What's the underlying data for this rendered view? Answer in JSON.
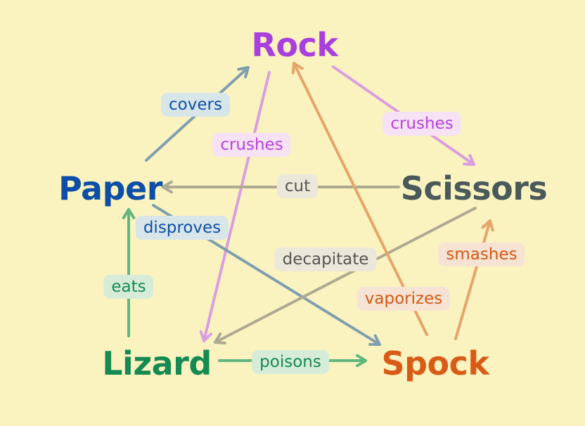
{
  "nodes": {
    "rock": {
      "label": "Rock",
      "color": "#a93fdc"
    },
    "paper": {
      "label": "Paper",
      "color": "#0d4fa6"
    },
    "scissors": {
      "label": "Scissors",
      "color": "#4a5a5a"
    },
    "lizard": {
      "label": "Lizard",
      "color": "#158a52"
    },
    "spock": {
      "label": "Spock",
      "color": "#d85b16"
    }
  },
  "edges": [
    {
      "from": "paper",
      "to": "rock",
      "label": "covers",
      "line": "#7f9fae",
      "bg": "#d8e6ea",
      "text": "#0d4fa6"
    },
    {
      "from": "rock",
      "to": "scissors",
      "label": "crushes",
      "line": "#d99ee0",
      "bg": "#f6e2f4",
      "text": "#b743d6"
    },
    {
      "from": "rock",
      "to": "lizard",
      "label": "crushes",
      "line": "#d99ee0",
      "bg": "#f6e2f4",
      "text": "#b743d6"
    },
    {
      "from": "scissors",
      "to": "paper",
      "label": "cut",
      "line": "#aeaa92",
      "bg": "#ebe8da",
      "text": "#555555"
    },
    {
      "from": "paper",
      "to": "spock",
      "label": "disproves",
      "line": "#7f9fae",
      "bg": "#d8e6ea",
      "text": "#0d4fa6"
    },
    {
      "from": "scissors",
      "to": "lizard",
      "label": "decapitate",
      "line": "#aeaa92",
      "bg": "#ebe8da",
      "text": "#555555"
    },
    {
      "from": "spock",
      "to": "rock",
      "label": "vaporizes",
      "line": "#e5a56a",
      "bg": "#f7e3d3",
      "text": "#d05a16"
    },
    {
      "from": "spock",
      "to": "scissors",
      "label": "smashes",
      "line": "#e5a56a",
      "bg": "#f7e3d3",
      "text": "#d05a16"
    },
    {
      "from": "lizard",
      "to": "paper",
      "label": "eats",
      "line": "#63b67e",
      "bg": "#d6ecd9",
      "text": "#158a52"
    },
    {
      "from": "lizard",
      "to": "spock",
      "label": "poisons",
      "line": "#63b67e",
      "bg": "#d6ecd9",
      "text": "#158a52"
    }
  ]
}
